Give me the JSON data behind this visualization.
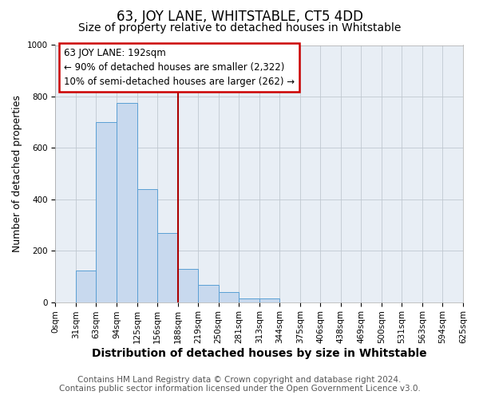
{
  "title": "63, JOY LANE, WHITSTABLE, CT5 4DD",
  "subtitle": "Size of property relative to detached houses in Whitstable",
  "xlabel": "Distribution of detached houses by size in Whitstable",
  "ylabel": "Number of detached properties",
  "bin_labels": [
    "0sqm",
    "31sqm",
    "63sqm",
    "94sqm",
    "125sqm",
    "156sqm",
    "188sqm",
    "219sqm",
    "250sqm",
    "281sqm",
    "313sqm",
    "344sqm",
    "375sqm",
    "406sqm",
    "438sqm",
    "469sqm",
    "500sqm",
    "531sqm",
    "563sqm",
    "594sqm",
    "625sqm"
  ],
  "bin_values": [
    0,
    122,
    700,
    775,
    440,
    270,
    130,
    68,
    40,
    15,
    15,
    0,
    0,
    0,
    0,
    0,
    0,
    0,
    0,
    0,
    0
  ],
  "bar_color": "#c8d9ee",
  "bar_edge_color": "#5a9fd4",
  "vline_x": 6,
  "vline_color": "#aa0000",
  "annotation_line1": "63 JOY LANE: 192sqm",
  "annotation_line2": "← 90% of detached houses are smaller (2,322)",
  "annotation_line3": "10% of semi-detached houses are larger (262) →",
  "annotation_box_color": "#cc0000",
  "annotation_box_bg": "#ffffff",
  "ylim": [
    0,
    1000
  ],
  "footer_line1": "Contains HM Land Registry data © Crown copyright and database right 2024.",
  "footer_line2": "Contains public sector information licensed under the Open Government Licence v3.0.",
  "background_color": "#ffffff",
  "plot_bg_color": "#e8eef5",
  "grid_color": "#c0c8d0",
  "title_fontsize": 12,
  "subtitle_fontsize": 10,
  "xlabel_fontsize": 10,
  "ylabel_fontsize": 9,
  "tick_fontsize": 7.5,
  "footer_fontsize": 7.5,
  "ann_fontsize": 8.5
}
